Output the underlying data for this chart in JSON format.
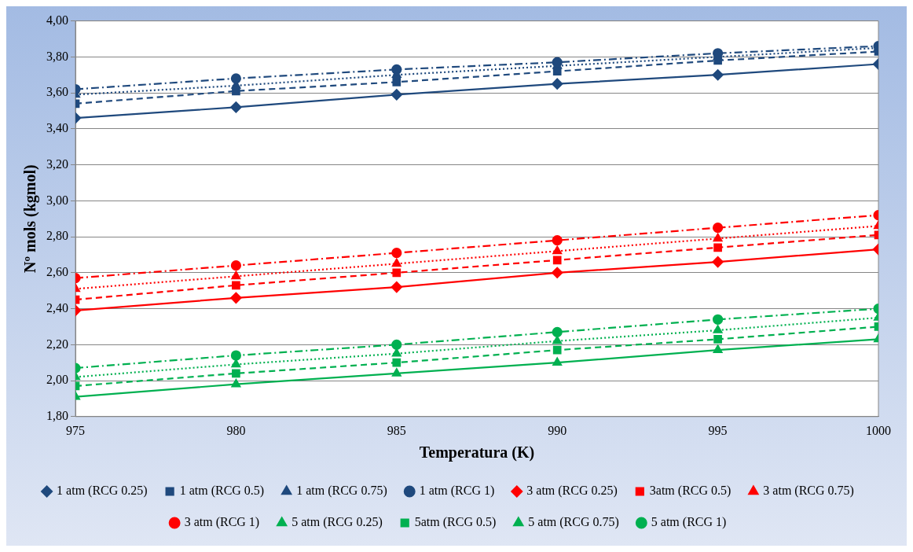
{
  "chart_data": {
    "type": "line",
    "xlabel": "Temperatura (K)",
    "ylabel": "Nº mols (kgmol)",
    "x": [
      975,
      980,
      985,
      990,
      995,
      1000
    ],
    "xlim": [
      975,
      1000
    ],
    "xticks": [
      975,
      980,
      985,
      990,
      995,
      1000
    ],
    "ylim": [
      1.8,
      4.0
    ],
    "yticks": [
      {
        "value": 1.8,
        "label": "1,80"
      },
      {
        "value": 2.0,
        "label": "2,00"
      },
      {
        "value": 2.2,
        "label": "2,20"
      },
      {
        "value": 2.4,
        "label": "2,40"
      },
      {
        "value": 2.6,
        "label": "2,60"
      },
      {
        "value": 2.8,
        "label": "2,80"
      },
      {
        "value": 3.0,
        "label": "3,00"
      },
      {
        "value": 3.2,
        "label": "3,20"
      },
      {
        "value": 3.4,
        "label": "3,40"
      },
      {
        "value": 3.6,
        "label": "3,60"
      },
      {
        "value": 3.8,
        "label": "3,80"
      },
      {
        "value": 4.0,
        "label": "4,00"
      }
    ],
    "grid": "y",
    "legend": "bottom",
    "series": [
      {
        "name": "1 atm (RCG 0.25)",
        "color": "#1f497d",
        "marker": "diamond",
        "line_style": "solid",
        "values": [
          3.46,
          3.52,
          3.59,
          3.65,
          3.7,
          3.76
        ]
      },
      {
        "name": "1 atm (RCG 0.5)",
        "color": "#1f497d",
        "marker": "square",
        "line_style": "dashed",
        "values": [
          3.54,
          3.61,
          3.66,
          3.72,
          3.78,
          3.83
        ]
      },
      {
        "name": "1 atm (RCG 0.75)",
        "color": "#1f497d",
        "marker": "triangle",
        "line_style": "dotted",
        "values": [
          3.59,
          3.64,
          3.7,
          3.75,
          3.8,
          3.85
        ]
      },
      {
        "name": "1 atm (RCG 1)",
        "color": "#1f497d",
        "marker": "circle",
        "line_style": "dashdot",
        "values": [
          3.62,
          3.68,
          3.73,
          3.77,
          3.82,
          3.86
        ]
      },
      {
        "name": "3 atm (RCG 0.25)",
        "color": "#ff0000",
        "marker": "diamond",
        "line_style": "solid",
        "values": [
          2.39,
          2.46,
          2.52,
          2.6,
          2.66,
          2.73
        ]
      },
      {
        "name": "3atm (RCG 0.5)",
        "color": "#ff0000",
        "marker": "square",
        "line_style": "dashed",
        "values": [
          2.45,
          2.53,
          2.6,
          2.67,
          2.74,
          2.81
        ]
      },
      {
        "name": "3 atm (RCG 0.75)",
        "color": "#ff0000",
        "marker": "triangle",
        "line_style": "dotted",
        "values": [
          2.51,
          2.58,
          2.65,
          2.72,
          2.79,
          2.86
        ]
      },
      {
        "name": "3 atm (RCG 1)",
        "color": "#ff0000",
        "marker": "circle",
        "line_style": "dashdot",
        "values": [
          2.57,
          2.64,
          2.71,
          2.78,
          2.85,
          2.92
        ]
      },
      {
        "name": "5 atm (RCG 0.25)",
        "color": "#00b050",
        "marker": "triangle",
        "line_style": "solid",
        "values": [
          1.91,
          1.98,
          2.04,
          2.1,
          2.17,
          2.23
        ]
      },
      {
        "name": "5atm (RCG 0.5)",
        "color": "#00b050",
        "marker": "square",
        "line_style": "dashed",
        "values": [
          1.97,
          2.04,
          2.1,
          2.17,
          2.23,
          2.3
        ]
      },
      {
        "name": "5 atm (RCG 0.75)",
        "color": "#00b050",
        "marker": "triangle",
        "line_style": "dotted",
        "values": [
          2.02,
          2.09,
          2.15,
          2.22,
          2.28,
          2.35
        ]
      },
      {
        "name": "5 atm (RCG 1)",
        "color": "#00b050",
        "marker": "circle",
        "line_style": "dashdot",
        "values": [
          2.07,
          2.14,
          2.2,
          2.27,
          2.34,
          2.4
        ]
      }
    ]
  }
}
